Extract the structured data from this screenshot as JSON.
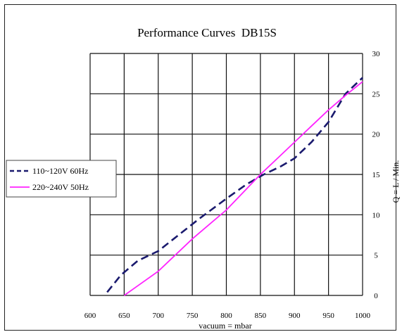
{
  "chart_data": {
    "type": "line",
    "title": "Performance Curves  DB15S",
    "xlabel": "vacuum = mbar",
    "ylabel": "Q = L / Min.",
    "xlim": [
      600,
      1000
    ],
    "ylim": [
      0,
      30
    ],
    "x_ticks": [
      "600",
      "650",
      "700",
      "750",
      "800",
      "850",
      "900",
      "950",
      "1000"
    ],
    "y_ticks": [
      "0",
      "5",
      "10",
      "15",
      "20",
      "25",
      "30"
    ],
    "grid": true,
    "y_axis_side": "right",
    "legend_position": "left",
    "series": [
      {
        "name": "110~120V 60Hz",
        "color": "#1a1a6e",
        "style": "dashed",
        "x": [
          625,
          645,
          670,
          700,
          730,
          760,
          800,
          830,
          855,
          880,
          900,
          925,
          950,
          975,
          1000
        ],
        "y": [
          0.4,
          2.5,
          4.3,
          5.5,
          7.5,
          9.5,
          12.0,
          13.8,
          15.0,
          16.0,
          17.0,
          19.0,
          21.5,
          25.0,
          27.0
        ]
      },
      {
        "name": "220~240V 50Hz",
        "color": "#ff22ff",
        "style": "solid",
        "x": [
          650,
          675,
          700,
          725,
          750,
          775,
          800,
          825,
          850,
          875,
          900,
          925,
          950,
          975,
          1000
        ],
        "y": [
          0,
          1.5,
          3.0,
          5.0,
          7.0,
          8.8,
          10.6,
          12.8,
          15.0,
          17.0,
          19.0,
          21.0,
          23.0,
          24.8,
          26.5
        ]
      }
    ]
  }
}
